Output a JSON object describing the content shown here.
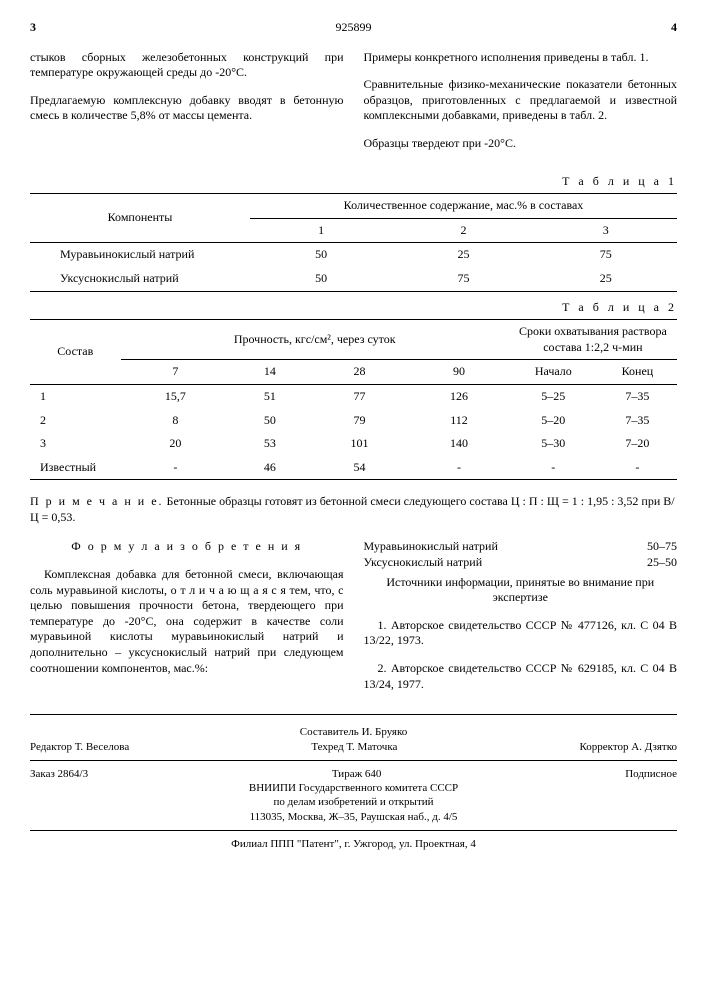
{
  "header": {
    "page_left": "3",
    "docnum": "925899",
    "page_right": "4"
  },
  "left_col": {
    "p1": "стыков сборных железобетонных конструкций при температуре окружающей среды до -20°С.",
    "p2": "Предлагаемую комплексную добавку вводят в бетонную смесь в количестве 5,8% от массы цемента."
  },
  "right_col": {
    "p1": "Примеры конкретного исполнения приведены в табл. 1.",
    "p2": "Сравнительные физико-механические показатели бетонных образцов, приготовленных с предлагаемой и известной комплексными добавками, приведены в табл. 2.",
    "p3": "Образцы твердеют при -20°С."
  },
  "table1": {
    "label": "Т а б л и ц а  1",
    "h_comp": "Компоненты",
    "h_qty": "Количественное содержание, мас.% в составах",
    "cols": [
      "1",
      "2",
      "3"
    ],
    "rows": [
      {
        "name": "Муравьинокислый натрий",
        "v": [
          "50",
          "25",
          "75"
        ]
      },
      {
        "name": "Уксуснокислый натрий",
        "v": [
          "50",
          "75",
          "25"
        ]
      }
    ]
  },
  "table2": {
    "label": "Т а б л и ц а  2",
    "h_sostav": "Состав",
    "h_strength": "Прочность, кгс/см², через  суток",
    "h_set": "Сроки охватывания раствора состава 1:2,2 ч-мин",
    "days": [
      "7",
      "14",
      "28",
      "90"
    ],
    "set_cols": [
      "Начало",
      "Конец"
    ],
    "rows": [
      {
        "n": "1",
        "v": [
          "15,7",
          "51",
          "77",
          "126",
          "5–25",
          "7–35"
        ]
      },
      {
        "n": "2",
        "v": [
          "8",
          "50",
          "79",
          "112",
          "5–20",
          "7–35"
        ]
      },
      {
        "n": "3",
        "v": [
          "20",
          "53",
          "101",
          "140",
          "5–30",
          "7–20"
        ]
      },
      {
        "n": "Известный",
        "v": [
          "-",
          "46",
          "54",
          "-",
          "-",
          "-"
        ]
      }
    ]
  },
  "note": {
    "label": "П р и м е ч а н и е.",
    "text": "Бетонные образцы готовят из бетонной смеси следующего состава Ц : П : Щ = 1 : 1,95 : 3,52 при В/Ц = 0,53."
  },
  "formula": {
    "title": "Ф о р м у л а  и з о б р е т е н и я",
    "body": "Комплексная добавка для бетонной смеси, включающая соль муравьиной кислоты, о т л и ч а ю щ а я с я тем, что, с целью повышения прочности бетона, твердеющего при температуре до -20°С, она содержит в качестве соли муравьиной кислоты муравьинокислый натрий и дополнительно – уксуснокислый натрий при следующем соотношении компонентов, мас.%:"
  },
  "ingredients": [
    {
      "name": "Муравьинокислый натрий",
      "range": "50–75"
    },
    {
      "name": "Уксуснокислый натрий",
      "range": "25–50"
    }
  ],
  "sources": {
    "title": "Источники информации, принятые во внимание при экспертизе",
    "items": [
      "1. Авторское свидетельство СССР № 477126, кл. С 04 В 13/22, 1973.",
      "2. Авторское свидетельство СССР № 629185, кл. С 04 В 13/24, 1977."
    ]
  },
  "footer": {
    "compiler": "Составитель И. Бруяко",
    "editor": "Редактор Т. Веселова",
    "tech": "Техред Т. Маточка",
    "corr": "Корректор А. Дзятко",
    "order": "Заказ 2864/3",
    "tirazh": "Тираж 640",
    "sub": "Подписное",
    "org1": "ВНИИПИ Государственного комитета СССР",
    "org2": "по делам изобретений и открытий",
    "addr": "113035, Москва, Ж–35, Раушская наб., д. 4/5",
    "branch": "Филиал ППП \"Патент\", г. Ужгород, ул. Проектная, 4"
  }
}
